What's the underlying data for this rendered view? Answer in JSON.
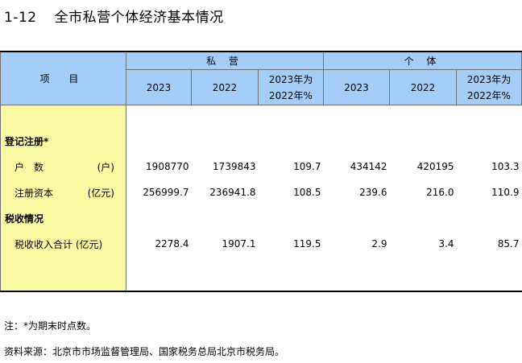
{
  "title": {
    "number": "1-12",
    "text": "全市私营个体经济基本情况"
  },
  "table": {
    "item_header": "项 目",
    "groups": [
      "私 营",
      "个 体"
    ],
    "sub_headers": [
      [
        "2023",
        "2022",
        "2023年为",
        "2022年%"
      ],
      [
        "2023",
        "2022",
        "2023年为",
        "2022年%"
      ]
    ],
    "rows": [
      {
        "type": "section",
        "label": "登记注册*",
        "unit": "",
        "values": []
      },
      {
        "type": "item",
        "label": "户　数",
        "unit": "(户)",
        "values": [
          "1908770",
          "1739843",
          "109.7",
          "434142",
          "420195",
          "103.3"
        ]
      },
      {
        "type": "item",
        "label": "注册资本",
        "unit": "(亿元)",
        "values": [
          "256999.7",
          "236941.8",
          "108.5",
          "239.6",
          "216.0",
          "110.9"
        ]
      },
      {
        "type": "section",
        "label": "税收情况",
        "unit": "",
        "values": []
      },
      {
        "type": "item",
        "label": "税收收入合计",
        "unit": "(亿元)",
        "values": [
          "2278.4",
          "1907.1",
          "119.5",
          "2.9",
          "3.4",
          "85.7"
        ]
      }
    ]
  },
  "notes": [
    "注：*为期末时点数。",
    "资料来源：北京市市场监督管理局、国家税务总局北京市税务局。"
  ]
}
